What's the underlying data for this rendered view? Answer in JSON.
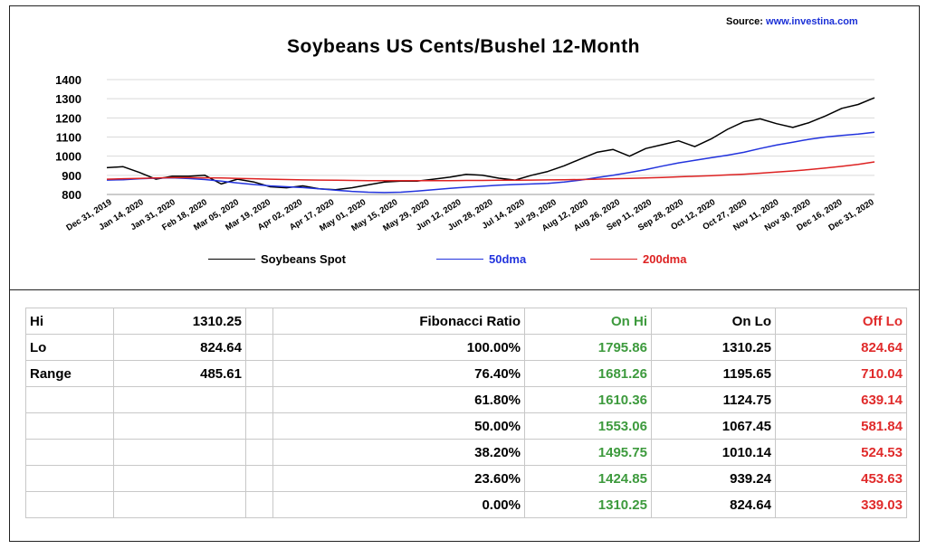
{
  "source": {
    "label": "Source:",
    "url": "www.investina.com"
  },
  "colors": {
    "spot": "#000000",
    "dma50": "#2233dd",
    "dma200": "#dd2222",
    "onhi": "#3d9a3d",
    "offlo": "#e02b2b"
  },
  "chart_data": {
    "type": "line",
    "title": "Soybeans US Cents/Bushel 12-Month",
    "ylim": [
      800,
      1400
    ],
    "yticks": [
      800,
      900,
      1000,
      1100,
      1200,
      1300,
      1400
    ],
    "xticks": [
      "Dec 31, 2019",
      "Jan 14, 2020",
      "Jan 31, 2020",
      "Feb 18, 2020",
      "Mar 05, 2020",
      "Mar 19, 2020",
      "Apr 02, 2020",
      "Apr 17, 2020",
      "May 01, 2020",
      "May 15, 2020",
      "May 29, 2020",
      "Jun 12, 2020",
      "Jun 28, 2020",
      "Jul 14, 2020",
      "Jul 29, 2020",
      "Aug 12, 2020",
      "Aug 26, 2020",
      "Sep 11, 2020",
      "Sep 28, 2020",
      "Oct 12, 2020",
      "Oct 27, 2020",
      "Nov 11, 2020",
      "Nov 30, 2020",
      "Dec 16, 2020",
      "Dec 31, 2020"
    ],
    "grid": true,
    "legend": "bottom",
    "series": [
      {
        "name": "Soybeans Spot",
        "values": [
          940,
          945,
          915,
          880,
          895,
          895,
          900,
          855,
          880,
          865,
          840,
          835,
          845,
          830,
          825,
          835,
          850,
          865,
          870,
          870,
          880,
          890,
          905,
          900,
          885,
          875,
          900,
          920,
          950,
          985,
          1020,
          1035,
          1000,
          1040,
          1060,
          1080,
          1050,
          1090,
          1140,
          1180,
          1195,
          1170,
          1150,
          1175,
          1210,
          1250,
          1270,
          1305
        ]
      },
      {
        "name": "50dma",
        "values": [
          875,
          877,
          882,
          885,
          887,
          883,
          878,
          870,
          860,
          852,
          845,
          840,
          836,
          830,
          822,
          816,
          812,
          810,
          812,
          818,
          825,
          832,
          838,
          843,
          848,
          852,
          855,
          858,
          865,
          875,
          888,
          900,
          915,
          930,
          948,
          965,
          978,
          992,
          1005,
          1020,
          1040,
          1058,
          1073,
          1088,
          1100,
          1108,
          1115,
          1125
        ]
      },
      {
        "name": "200dma",
        "values": [
          880,
          882,
          884,
          886,
          888,
          888,
          887,
          886,
          884,
          882,
          880,
          878,
          876,
          875,
          874,
          873,
          872,
          872,
          872,
          872,
          872,
          872,
          873,
          873,
          874,
          874,
          875,
          876,
          877,
          878,
          880,
          882,
          884,
          886,
          889,
          892,
          895,
          898,
          902,
          906,
          911,
          917,
          923,
          930,
          938,
          947,
          957,
          970
        ]
      }
    ]
  },
  "table": {
    "header": [
      "Hi",
      "1310.25",
      "",
      "Fibonacci  Ratio",
      "On Hi",
      "On Lo",
      "Off Lo"
    ],
    "left": [
      [
        "Lo",
        "824.64"
      ],
      [
        "Range",
        "485.61"
      ],
      [
        "",
        ""
      ],
      [
        "",
        ""
      ],
      [
        "",
        ""
      ],
      [
        "",
        ""
      ],
      [
        "",
        ""
      ]
    ],
    "fib": [
      [
        "100.00%",
        "1795.86",
        "1310.25",
        "824.64"
      ],
      [
        "76.40%",
        "1681.26",
        "1195.65",
        "710.04"
      ],
      [
        "61.80%",
        "1610.36",
        "1124.75",
        "639.14"
      ],
      [
        "50.00%",
        "1553.06",
        "1067.45",
        "581.84"
      ],
      [
        "38.20%",
        "1495.75",
        "1010.14",
        "524.53"
      ],
      [
        "23.60%",
        "1424.85",
        "939.24",
        "453.63"
      ],
      [
        "0.00%",
        "1310.25",
        "824.64",
        "339.03"
      ]
    ]
  }
}
